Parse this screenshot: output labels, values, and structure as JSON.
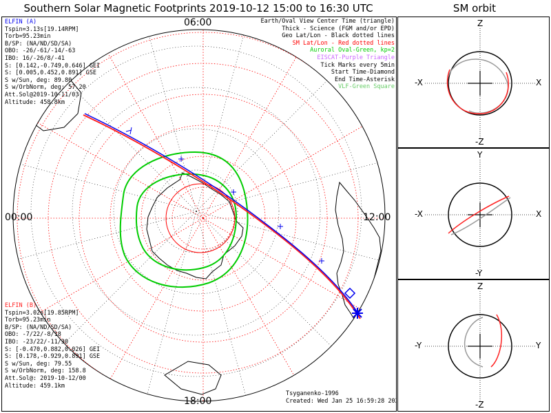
{
  "title": "Southern Solar Magnetic Footprints 2019-10-12 15:00 to 16:30 UTC",
  "orbit_title": "SM orbit",
  "map": {
    "time_labels": {
      "top": "06:00",
      "bottom": "18:00",
      "left": "00:00",
      "right": "12:00"
    },
    "legend": [
      {
        "text": "Earth/Oval View Center Time (triangle)",
        "color": "#000000"
      },
      {
        "text": "Thick - Science (FGM and/or EPD)",
        "color": "#000000"
      },
      {
        "text": "Geo Lat/Lon - Black dotted lines",
        "color": "#000000"
      },
      {
        "text": "SM Lat/Lon - Red dotted lines",
        "color": "#ff0000"
      },
      {
        "text": "Auroral Oval-Green, kp=2",
        "color": "#00cc00"
      },
      {
        "text": "EISCAT-Purple Triangle",
        "color": "#cc66ff"
      },
      {
        "text": "Tick Marks every 5min",
        "color": "#000000"
      },
      {
        "text": "Start Time-Diamond",
        "color": "#000000"
      },
      {
        "text": "End Time-Asterisk",
        "color": "#000000"
      },
      {
        "text": "VLF-Green Square",
        "color": "#66cc66"
      }
    ],
    "elfin_a": {
      "header": "ELFIN (A)",
      "lines": [
        "Tspin=3.13s[19.14RPM]",
        "Torb=95.23min",
        "B/SP: (NA/ND/SD/SA)",
        "OBO: -26/-61/-14/-63",
        "IBO: 16/-26/8/-41",
        "S: [0.142,-0.749,0.646] GEI",
        "S: [0.005,0.452,0.891] GSE",
        "S w/Sun, deg: 89.80",
        "S w/OrbNorm, deg: 57.20",
        "Att.Sol@2019-10-11/03",
        "Altitude: 458.8km"
      ]
    },
    "elfin_b": {
      "header": "ELFIN (B)",
      "lines": [
        "Tspin=3.02s[19.85RPM]",
        "Torb=95.23min",
        "B/SP: (NA/ND/SD/SA)",
        "OBO: -7/22/-8/18",
        "IBO: -23/22/-11/30",
        "S: [-0.470,0.882,0.026] GEI",
        "S: [0.178,-0.929,0.891] GSE",
        "S w/Sun, deg: 79.55",
        "S w/OrbNorm, deg: 158.8",
        "Att.Sol@: 2019-10-12/00",
        "Altitude: 459.1km"
      ]
    },
    "credit": "Tsyganenko-1996",
    "created": "Created: Wed Jan 25 16:59:28 2023"
  },
  "orbit_panels": [
    {
      "top": "Z",
      "bottom": "-Z",
      "left": "-X",
      "right": "X"
    },
    {
      "top": "Y",
      "bottom": "-Y",
      "left": "-X",
      "right": "X"
    },
    {
      "top": "Z",
      "bottom": "-Z",
      "left": "-Y",
      "right": "Y"
    }
  ],
  "colors": {
    "elfin_a": "#0000ee",
    "elfin_b": "#ff2020",
    "oval": "#00cc00",
    "sm_grid": "#ff0000",
    "orbit_grey": "#999999"
  }
}
